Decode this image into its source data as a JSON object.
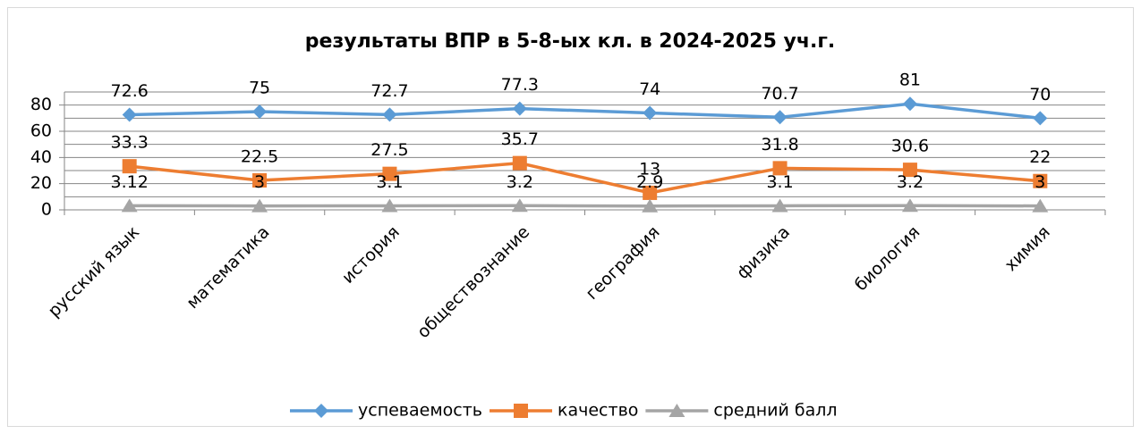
{
  "chart_data": {
    "type": "line",
    "title": "результаты ВПР в 5-8-ых кл. в 2024-2025 уч.г.",
    "categories": [
      "русский язык",
      "математика",
      "история",
      "обществознание",
      "география",
      "физика",
      "биология",
      "химия"
    ],
    "series": [
      {
        "name": "успеваемость",
        "color": "#5b9bd5",
        "marker": "diamond",
        "values": [
          72.6,
          75,
          72.7,
          77.3,
          74,
          70.7,
          81,
          70
        ]
      },
      {
        "name": "качество",
        "color": "#ed7d31",
        "marker": "square",
        "values": [
          33.3,
          22.5,
          27.5,
          35.7,
          13,
          31.8,
          30.6,
          22
        ]
      },
      {
        "name": "средний балл",
        "color": "#a5a5a5",
        "marker": "triangle",
        "values": [
          3.12,
          3,
          3.1,
          3.2,
          2.9,
          3.1,
          3.2,
          3
        ]
      }
    ],
    "ylim": [
      0,
      90
    ],
    "yticks": [
      0,
      20,
      40,
      60,
      80
    ],
    "y_minor_ticks": [
      10,
      30,
      50,
      70,
      90
    ],
    "grid": true,
    "legend": "bottom"
  }
}
